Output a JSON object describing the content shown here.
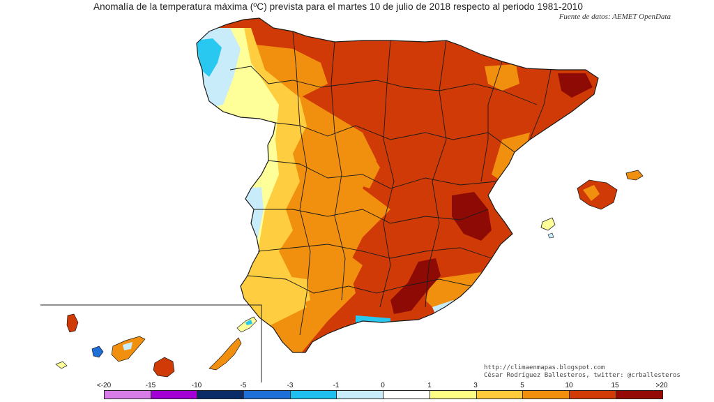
{
  "header": {
    "title": "Anomalía de la temperatura máxima (ºC) prevista para el martes 10 de julio de 2018 respecto al periodo 1981-2010",
    "source": "Fuente de datos: AEMET OpenData"
  },
  "credits": {
    "line1": "http://climaenmapas.blogspot.com",
    "line2": "César Rodríguez Ballesteros, twitter: @crballesteros"
  },
  "legend": {
    "labels": [
      "<-20",
      "-15",
      "-10",
      "-5",
      "-3",
      "-1",
      "0",
      "1",
      "3",
      "5",
      "10",
      "15",
      ">20"
    ],
    "colors": [
      "#d87ce8",
      "#a300d6",
      "#0b2a68",
      "#1f6fd8",
      "#1fc0f0",
      "#c8ecfa",
      "#ffffff",
      "#fefe84",
      "#ffcb3a",
      "#f28f0c",
      "#d23a06",
      "#960a06",
      "#6e3a0a"
    ]
  },
  "map": {
    "region": "Península Ibérica, Baleares y Canarias",
    "colors": {
      "land_red": "#cf3a06",
      "land_orange": "#f1900f",
      "land_yellow": "#ffcd40",
      "land_paleyellow": "#ffff99",
      "land_darkred": "#8e0b05",
      "land_lightblue": "#c8ecfa",
      "land_cyan": "#28c8f0",
      "border": "#1a1a1a"
    }
  }
}
